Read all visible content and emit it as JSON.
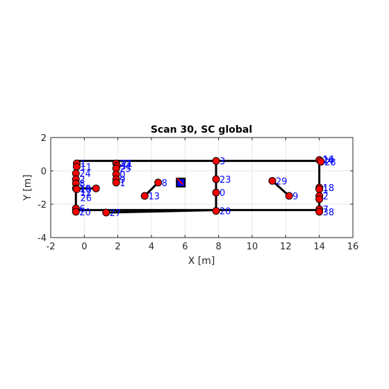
{
  "chart_data": {
    "type": "scatter",
    "title": "Scan 30, SC global",
    "xlabel": "X [m]",
    "ylabel": "Y [m]",
    "xlim": [
      -2,
      16
    ],
    "ylim": [
      -4,
      2
    ],
    "xticks": [
      -2,
      0,
      2,
      4,
      6,
      8,
      10,
      12,
      14,
      16
    ],
    "yticks": [
      -4,
      -2,
      0,
      2
    ],
    "grid": true,
    "colors": {
      "walls": "#000000",
      "landmark_fill": "#ff0000",
      "label": "#0000ff",
      "robot_marker": "#000000",
      "robot_fill": "#0000ff",
      "heading": "#ff0000",
      "grid": "#e6e6e6"
    },
    "walls": [
      {
        "x": [
          -0.5,
          14.0
        ],
        "y": [
          0.6,
          0.6
        ]
      },
      {
        "x": [
          -0.5,
          14.0
        ],
        "y": [
          -2.35,
          -2.35
        ]
      },
      {
        "x": [
          -0.5,
          -0.5
        ],
        "y": [
          0.6,
          -2.35
        ]
      },
      {
        "x": [
          14.0,
          14.0
        ],
        "y": [
          0.6,
          -2.35
        ]
      },
      {
        "x": [
          7.85,
          7.85
        ],
        "y": [
          0.6,
          -2.35
        ]
      },
      {
        "x": [
          2.0,
          2.0
        ],
        "y": [
          0.5,
          -0.7
        ]
      },
      {
        "x": [
          1.3,
          8.0
        ],
        "y": [
          -2.5,
          -2.35
        ]
      },
      {
        "x": [
          3.6,
          4.4
        ],
        "y": [
          -1.5,
          -0.7
        ]
      },
      {
        "x": [
          11.2,
          12.2
        ],
        "y": [
          -0.6,
          -1.5
        ]
      },
      {
        "x": [
          -0.5,
          0.7
        ],
        "y": [
          -1.05,
          -1.05
        ]
      }
    ],
    "robot": {
      "x": 5.75,
      "y": -0.7
    },
    "landmarks": [
      {
        "x": -0.45,
        "y": 0.45,
        "label": "1"
      },
      {
        "x": -0.45,
        "y": 0.25,
        "label": "11"
      },
      {
        "x": -0.5,
        "y": -0.15,
        "label": "24"
      },
      {
        "x": -0.5,
        "y": -0.5,
        "label": "2"
      },
      {
        "x": -0.5,
        "y": -0.75,
        "label": "8"
      },
      {
        "x": -0.5,
        "y": -1.05,
        "label": "10"
      },
      {
        "x": -0.45,
        "y": -1.1,
        "label": "15"
      },
      {
        "x": 0.7,
        "y": -1.05,
        "label": ""
      },
      {
        "x": -0.5,
        "y": -2.25,
        "label": "6"
      },
      {
        "x": -0.5,
        "y": -2.45,
        "label": "20"
      },
      {
        "x": 1.3,
        "y": -2.5,
        "label": "27"
      },
      {
        "x": 1.9,
        "y": 0.45,
        "label": "22"
      },
      {
        "x": 1.95,
        "y": 0.3,
        "label": "31"
      },
      {
        "x": 1.9,
        "y": 0.15,
        "label": "25"
      },
      {
        "x": 1.9,
        "y": -0.2,
        "label": "0"
      },
      {
        "x": 1.9,
        "y": -0.5,
        "label": "9"
      },
      {
        "x": 1.9,
        "y": -0.7,
        "label": "1"
      },
      {
        "x": 4.4,
        "y": -0.7,
        "label": "8"
      },
      {
        "x": 3.6,
        "y": -1.5,
        "label": "13"
      },
      {
        "x": 7.85,
        "y": 0.6,
        "label": "3"
      },
      {
        "x": 7.85,
        "y": -0.5,
        "label": "23"
      },
      {
        "x": 7.85,
        "y": -1.3,
        "label": "0"
      },
      {
        "x": 7.85,
        "y": -2.4,
        "label": "20"
      },
      {
        "x": 11.2,
        "y": -0.6,
        "label": "29"
      },
      {
        "x": 12.2,
        "y": -1.5,
        "label": "9"
      },
      {
        "x": 14.0,
        "y": 0.65,
        "label": "24"
      },
      {
        "x": 14.1,
        "y": 0.55,
        "label": "28"
      },
      {
        "x": 14.0,
        "y": -1.0,
        "label": "18"
      },
      {
        "x": 14.0,
        "y": -1.1,
        "label": "1"
      },
      {
        "x": 14.0,
        "y": -1.5,
        "label": "2"
      },
      {
        "x": 14.0,
        "y": -1.7,
        "label": ""
      },
      {
        "x": 14.0,
        "y": -2.3,
        "label": "7"
      },
      {
        "x": 14.0,
        "y": -2.45,
        "label": "38"
      }
    ],
    "extra_labels": [
      {
        "x": -0.45,
        "y": -1.3,
        "label": "12"
      },
      {
        "x": -0.45,
        "y": -1.6,
        "label": "26"
      },
      {
        "x": 2.0,
        "y": 0.45,
        "label": "21"
      },
      {
        "x": 14.0,
        "y": 0.7,
        "label": "16"
      }
    ]
  }
}
